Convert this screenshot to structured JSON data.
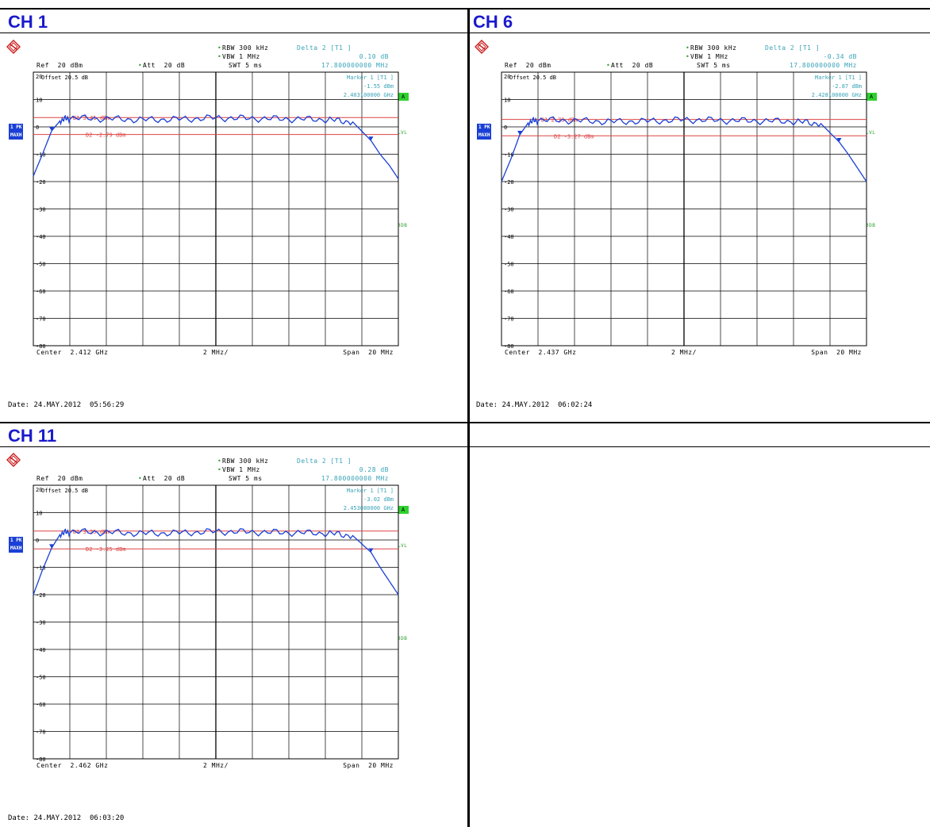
{
  "panels": [
    {
      "title": "CH 1",
      "rbw": "RBW 300 kHz",
      "vbw": "VBW 1 MHz",
      "swt": "SWT 5 ms",
      "ref": "Ref  20 dBm",
      "att": "Att  20 dB",
      "offset": "Offset  20.5 dB",
      "delta_label": "Delta 2 [T1 ]",
      "delta_val": "0.10 dB",
      "delta_freq": "17.800000000 MHz",
      "marker_label": "Marker 1 [T1 ]",
      "marker_val": "-1.55 dBm",
      "marker_freq": "2.403100000 GHz",
      "d1": "D1  3.41 dBm",
      "d2": "D2  -2.79 dBm",
      "center": "Center  2.412 GHz",
      "div": "2 MHz/",
      "span": "Span  20 MHz",
      "date": "Date: 24.MAY.2012  05:56:29"
    },
    {
      "title": "CH 6",
      "rbw": "RBW 300 kHz",
      "vbw": "VBW 1 MHz",
      "swt": "SWT 5 ms",
      "ref": "Ref  20 dBm",
      "att": "Att  20 dB",
      "offset": "Offset  20.5 dB",
      "delta_label": "Delta 2 [T1 ]",
      "delta_val": "-0.34 dB",
      "delta_freq": "17.800000000 MHz",
      "marker_label": "Marker 1 [T1 ]",
      "marker_val": "-2.87 dBm",
      "marker_freq": "2.428100000 GHz",
      "d1": "D1  2.73 dBm",
      "d2": "D2  -3.27 dBm",
      "center": "Center  2.437 GHz",
      "div": "2 MHz/",
      "span": "Span  20 MHz",
      "date": "Date: 24.MAY.2012  06:02:24"
    },
    {
      "title": "CH 11",
      "rbw": "RBW 300 kHz",
      "vbw": "VBW 1 MHz",
      "swt": "SWT 5 ms",
      "ref": "Ref  20 dBm",
      "att": "Att  20 dB",
      "offset": "Offset  20.5 dB",
      "delta_label": "Delta 2 [T1 ]",
      "delta_val": "0.28 dB",
      "delta_freq": "17.800000000 MHz",
      "marker_label": "Marker 1 [T1 ]",
      "marker_val": "-3.02 dBm",
      "marker_freq": "2.453080000 GHz",
      "d1": "D1  3.25 dBm",
      "d2": "D2  -3.25 dBm",
      "center": "Center  2.462 GHz",
      "div": "2 MHz/",
      "span": "Span  20 MHz",
      "date": "Date: 24.MAY.2012  06:03:20"
    }
  ],
  "badges": {
    "trace": "1 PK",
    "mode": "MAXH",
    "a": "A",
    "lvl": "LVL",
    "db3": "3DB"
  },
  "colors": {
    "trace": "#1a3fd6",
    "lines": "#d44",
    "cyan": "#3aa3b8",
    "title": "#1a1acc"
  },
  "chart_data": [
    {
      "type": "line",
      "ylim": [
        -80,
        20
      ],
      "yticks": [
        20,
        10,
        0,
        -10,
        -20,
        -30,
        -40,
        -50,
        -60,
        -70,
        -80
      ],
      "xlim": [
        2.402,
        2.422
      ],
      "d1_level": 3.41,
      "d2_level": -2.79,
      "series": [
        {
          "x": [
            2.402,
            2.4025,
            2.403,
            2.4035,
            2.404,
            2.406,
            2.408,
            2.41,
            2.412,
            2.414,
            2.416,
            2.418,
            2.4195,
            2.4205,
            2.421,
            2.4215,
            2.422
          ],
          "values": [
            -18,
            -10,
            -1.5,
            2.5,
            3.2,
            3.0,
            2.6,
            2.8,
            3.3,
            3.1,
            2.9,
            2.7,
            1.8,
            -5,
            -10,
            -14,
            -19
          ]
        }
      ]
    },
    {
      "type": "line",
      "ylim": [
        -80,
        20
      ],
      "yticks": [
        20,
        10,
        0,
        -10,
        -20,
        -30,
        -40,
        -50,
        -60,
        -70,
        -80
      ],
      "xlim": [
        2.427,
        2.447
      ],
      "d1_level": 2.73,
      "d2_level": -3.27,
      "series": [
        {
          "x": [
            2.427,
            2.4275,
            2.428,
            2.4285,
            2.429,
            2.431,
            2.433,
            2.435,
            2.437,
            2.439,
            2.441,
            2.443,
            2.4445,
            2.4455,
            2.446,
            2.4465,
            2.447
          ],
          "values": [
            -20,
            -12,
            -2.9,
            1.8,
            2.5,
            2.3,
            1.9,
            2.1,
            2.6,
            2.4,
            2.2,
            2.0,
            1.2,
            -5.5,
            -10,
            -15,
            -20
          ]
        }
      ]
    },
    {
      "type": "line",
      "ylim": [
        -80,
        20
      ],
      "yticks": [
        20,
        10,
        0,
        -10,
        -20,
        -30,
        -40,
        -50,
        -60,
        -70,
        -80
      ],
      "xlim": [
        2.452,
        2.472
      ],
      "d1_level": 3.25,
      "d2_level": -3.25,
      "series": [
        {
          "x": [
            2.452,
            2.4525,
            2.453,
            2.4535,
            2.454,
            2.456,
            2.458,
            2.46,
            2.462,
            2.464,
            2.466,
            2.468,
            2.4695,
            2.4705,
            2.471,
            2.4715,
            2.472
          ],
          "values": [
            -20,
            -11,
            -3.0,
            2.4,
            3.0,
            2.8,
            2.4,
            2.6,
            3.1,
            2.9,
            2.7,
            2.5,
            1.6,
            -4.5,
            -10,
            -15,
            -20
          ]
        }
      ]
    }
  ]
}
